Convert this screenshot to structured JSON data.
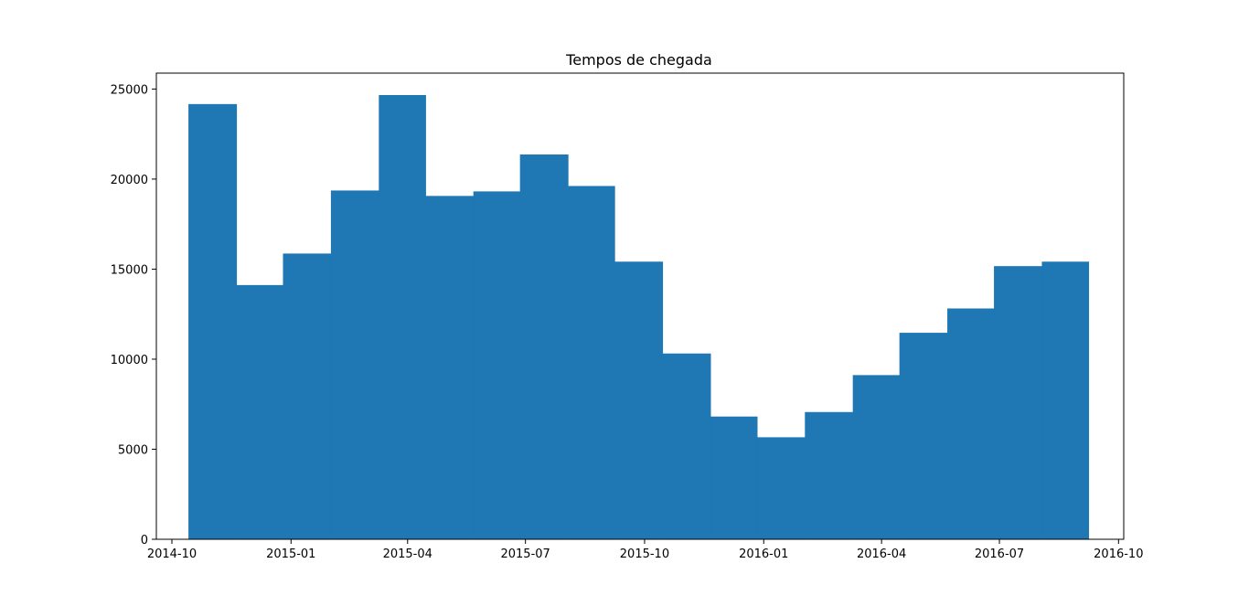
{
  "chart_data": {
    "type": "bar",
    "title": "Tempos de chegada",
    "xlabel": "",
    "ylabel": "",
    "color": "#1f77b4",
    "bin_edges": [
      "2014-10-14",
      "2014-11-20",
      "2014-12-26",
      "2015-02-01",
      "2015-03-10",
      "2015-04-15",
      "2015-05-22",
      "2015-06-27",
      "2015-08-03",
      "2015-09-08",
      "2015-10-15",
      "2015-11-21",
      "2015-12-27",
      "2016-02-02",
      "2016-03-10",
      "2016-04-15",
      "2016-05-22",
      "2016-06-27",
      "2016-08-03",
      "2016-09-08"
    ],
    "values": [
      24150,
      14100,
      15850,
      19350,
      24650,
      19050,
      19300,
      21350,
      19600,
      15400,
      10300,
      6800,
      5650,
      7050,
      9100,
      11450,
      12800,
      15150,
      15400
    ],
    "x_ticks": [
      "2014-10",
      "2015-01",
      "2015-04",
      "2015-07",
      "2015-10",
      "2016-01",
      "2016-04",
      "2016-07",
      "2016-10"
    ],
    "y_ticks": [
      0,
      5000,
      10000,
      15000,
      20000,
      25000
    ],
    "xlim": [
      "2014-09-19",
      "2016-10-05"
    ],
    "ylim": [
      0,
      25883
    ],
    "grid": false
  }
}
